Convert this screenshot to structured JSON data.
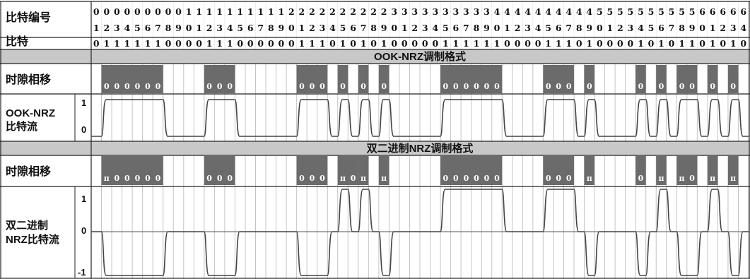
{
  "row_labels": {
    "bit_index": "比特编号",
    "bit": "比特",
    "slot_shift_1": "时隙相移",
    "ook_stream_line1": "OOK-NRZ",
    "ook_stream_line2": "比特流",
    "slot_shift_2": "时隙相移",
    "dbin_stream_line1": "双二进制",
    "dbin_stream_line2": "NRZ比特流"
  },
  "section_titles": {
    "ook": "OOK-NRZ调制格式",
    "duobinary": "双二进制NRZ调制格式"
  },
  "bit_index_tens": [
    "0",
    "0",
    "0",
    "0",
    "0",
    "0",
    "0",
    "0",
    "0",
    "1",
    "1",
    "1",
    "1",
    "1",
    "1",
    "1",
    "1",
    "1",
    "1",
    "2",
    "2",
    "2",
    "2",
    "2",
    "2",
    "2",
    "2",
    "2",
    "2",
    "3",
    "3",
    "3",
    "3",
    "3",
    "3",
    "3",
    "3",
    "3",
    "3",
    "4",
    "4",
    "4",
    "4",
    "4",
    "4",
    "4",
    "4",
    "4",
    "4",
    "5",
    "5",
    "5",
    "5",
    "5",
    "5",
    "5",
    "5",
    "5",
    "5",
    "6",
    "6",
    "6",
    "6",
    "6"
  ],
  "bit_index_units": [
    "1",
    "2",
    "3",
    "4",
    "5",
    "6",
    "7",
    "8",
    "9",
    "0",
    "1",
    "2",
    "3",
    "4",
    "5",
    "6",
    "7",
    "8",
    "9",
    "0",
    "1",
    "2",
    "3",
    "4",
    "5",
    "6",
    "7",
    "8",
    "9",
    "0",
    "1",
    "2",
    "3",
    "4",
    "5",
    "6",
    "7",
    "8",
    "9",
    "0",
    "1",
    "2",
    "3",
    "4",
    "5",
    "6",
    "7",
    "8",
    "9",
    "0",
    "1",
    "2",
    "3",
    "4",
    "5",
    "6",
    "7",
    "8",
    "9",
    "0",
    "1",
    "2",
    "3",
    "4"
  ],
  "bits": [
    0,
    1,
    1,
    1,
    1,
    1,
    1,
    0,
    0,
    0,
    0,
    1,
    1,
    1,
    0,
    0,
    0,
    0,
    0,
    0,
    1,
    1,
    1,
    0,
    1,
    0,
    1,
    0,
    1,
    0,
    0,
    0,
    0,
    0,
    1,
    1,
    1,
    1,
    1,
    1,
    0,
    0,
    0,
    0,
    1,
    1,
    1,
    0,
    1,
    0,
    0,
    0,
    0,
    1,
    0,
    1,
    0,
    1,
    1,
    0,
    1,
    0,
    1,
    0
  ],
  "ook_slot_blocks": [
    {
      "start": 1,
      "marks": [
        "0",
        "0",
        "0",
        "0",
        "0",
        "0"
      ]
    },
    {
      "start": 11,
      "marks": [
        "0",
        "0",
        "0"
      ]
    },
    {
      "start": 20,
      "marks": [
        "0",
        "0",
        "0"
      ]
    },
    {
      "start": 24,
      "marks": [
        "0"
      ]
    },
    {
      "start": 26,
      "marks": [
        "0"
      ]
    },
    {
      "start": 28,
      "marks": [
        "0"
      ]
    },
    {
      "start": 34,
      "marks": [
        "0",
        "0",
        "0",
        "0",
        "0",
        "0"
      ]
    },
    {
      "start": 44,
      "marks": [
        "0",
        "0",
        "0"
      ]
    },
    {
      "start": 48,
      "marks": [
        "0"
      ]
    },
    {
      "start": 53,
      "marks": [
        "0"
      ]
    },
    {
      "start": 55,
      "marks": [
        "0"
      ]
    },
    {
      "start": 57,
      "marks": [
        "0",
        "0"
      ]
    },
    {
      "start": 60,
      "marks": [
        "0"
      ]
    },
    {
      "start": 62,
      "marks": [
        "0"
      ]
    }
  ],
  "duobinary_slot_blocks": [
    {
      "start": 1,
      "marks": [
        "π",
        "0",
        "0",
        "0",
        "0",
        "0"
      ]
    },
    {
      "start": 11,
      "marks": [
        "0",
        "0",
        "0"
      ]
    },
    {
      "start": 20,
      "marks": [
        "0",
        "0",
        "0"
      ]
    },
    {
      "start": 24,
      "marks": [
        "π",
        "0"
      ]
    },
    {
      "start": 26,
      "marks": [
        "π"
      ]
    },
    {
      "start": 28,
      "marks": [
        "π"
      ]
    },
    {
      "start": 34,
      "marks": [
        "0",
        "0",
        "0",
        "0",
        "0",
        "0"
      ]
    },
    {
      "start": 44,
      "marks": [
        "0",
        "0",
        "0"
      ]
    },
    {
      "start": 48,
      "marks": [
        "π"
      ]
    },
    {
      "start": 53,
      "marks": [
        "0"
      ]
    },
    {
      "start": 55,
      "marks": [
        "π"
      ]
    },
    {
      "start": 57,
      "marks": [
        "π",
        "0"
      ]
    },
    {
      "start": 60,
      "marks": [
        "π"
      ]
    },
    {
      "start": 62,
      "marks": [
        "π"
      ]
    }
  ],
  "ook_axis": {
    "high": "1",
    "low": "0"
  },
  "duobinary_axis": {
    "high": "1",
    "mid": "0",
    "low": "-1"
  },
  "duobinary_levels": [
    0,
    -1,
    -1,
    -1,
    -1,
    -1,
    -1,
    0,
    0,
    0,
    0,
    -1,
    -1,
    -1,
    0,
    0,
    0,
    0,
    0,
    0,
    -1,
    -1,
    -1,
    0,
    1,
    0,
    1,
    0,
    -1,
    0,
    0,
    0,
    0,
    0,
    1,
    1,
    1,
    1,
    1,
    1,
    0,
    0,
    0,
    0,
    1,
    1,
    1,
    0,
    -1,
    0,
    0,
    0,
    0,
    -1,
    0,
    1,
    0,
    -1,
    -1,
    0,
    1,
    0,
    -1,
    0
  ],
  "colors": {
    "block": "#6b6b6b",
    "band": "#c8c8c8",
    "grid": "#c4c4c4",
    "line": "#222222",
    "wave": "#444444"
  }
}
